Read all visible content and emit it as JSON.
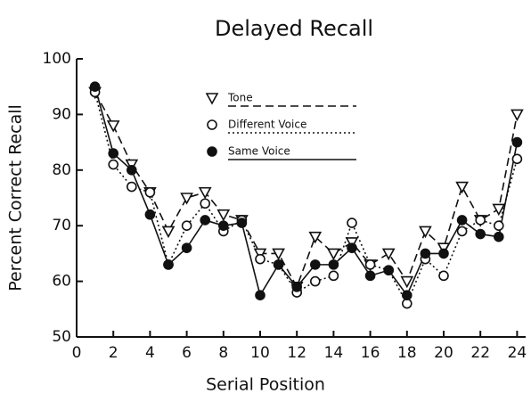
{
  "chart_data": {
    "type": "line",
    "title": "Delayed Recall",
    "x_label": "Serial Position",
    "y_label": "Percent Correct Recall",
    "x": [
      1,
      2,
      3,
      4,
      5,
      6,
      7,
      8,
      9,
      10,
      11,
      12,
      13,
      14,
      15,
      16,
      17,
      18,
      19,
      20,
      21,
      22,
      23,
      24
    ],
    "series": [
      {
        "name": "Tone",
        "color": "#111111",
        "marker": "triangle",
        "line_style": "dashed",
        "values": [
          94,
          88,
          81,
          76,
          69,
          75,
          76,
          72,
          71,
          65,
          65,
          59,
          68,
          65,
          67,
          63,
          65,
          60,
          69,
          66,
          77,
          71,
          73,
          90
        ]
      },
      {
        "name": "Different Voice",
        "color": "#111111",
        "marker": "open-circle",
        "line_style": "dotted",
        "values": [
          94,
          81,
          77,
          76,
          63,
          70,
          74,
          69,
          71,
          64,
          63,
          58,
          60,
          61,
          70.5,
          63,
          62,
          56,
          64,
          61,
          69,
          71,
          70,
          82
        ]
      },
      {
        "name": "Same Voice",
        "color": "#111111",
        "marker": "filled-circle",
        "line_style": "solid",
        "values": [
          95,
          83,
          80,
          72,
          63,
          66,
          71,
          70,
          70.5,
          57.5,
          63,
          59,
          63,
          63,
          66,
          61,
          62,
          57.5,
          65,
          65,
          71,
          68.5,
          68,
          85
        ]
      }
    ],
    "xlim": [
      0,
      24.5
    ],
    "xticks": [
      0,
      2,
      4,
      6,
      8,
      10,
      12,
      14,
      16,
      18,
      20,
      22,
      24
    ],
    "ylim": [
      50,
      100
    ],
    "yticks": [
      50,
      60,
      70,
      80,
      90,
      100
    ],
    "grid": false,
    "legend": "top"
  }
}
